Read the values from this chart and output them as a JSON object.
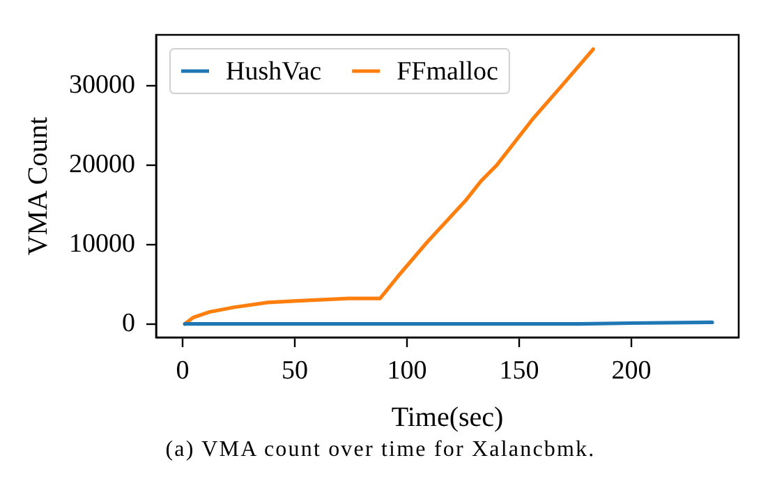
{
  "chart_data": {
    "type": "line",
    "xlabel": "Time(sec)",
    "ylabel": "VMA Count",
    "annotations": [
      "(a) VMA count over time for Xalancbmk."
    ],
    "series": [
      {
        "name": "HushVac",
        "color": "#1f77b4",
        "x": [
          1,
          100,
          177,
          200,
          236
        ],
        "values": [
          0,
          0,
          0,
          100,
          200
        ]
      },
      {
        "name": "FFmalloc",
        "color": "#ff7f0e",
        "x": [
          1,
          4.7,
          12,
          23,
          38,
          51,
          74,
          88,
          96,
          109,
          126,
          133,
          140,
          156,
          169,
          183
        ],
        "values": [
          0,
          800,
          1500,
          2100,
          2700,
          2900,
          3200,
          3200,
          6000,
          10300,
          15500,
          18000,
          20000,
          25800,
          30000,
          34600
        ]
      }
    ],
    "xlim": [
      -11.8,
      247.8
    ],
    "ylim": [
      -1700,
      36400
    ],
    "xticks": [
      0,
      50,
      100,
      150,
      200
    ],
    "yticks": [
      0,
      10000,
      20000,
      30000
    ],
    "legend": "top left"
  }
}
